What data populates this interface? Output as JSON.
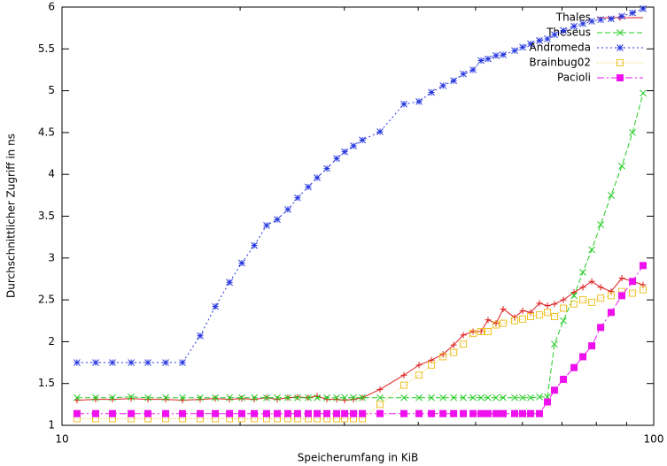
{
  "chart_data": {
    "type": "line",
    "xlabel": "Speicherumfang in KiB",
    "ylabel": "Durchschnittlicher Zugriff in ns",
    "xlog": true,
    "xlim": [
      10,
      100
    ],
    "xticks": [
      10,
      100
    ],
    "xminorticks": [
      20,
      30,
      40,
      50,
      60,
      70,
      80,
      90
    ],
    "ylim": [
      1,
      6
    ],
    "yticks": [
      1,
      1.5,
      2,
      2.5,
      3,
      3.5,
      4,
      4.5,
      5,
      5.5,
      6
    ],
    "legend": "top-right",
    "x": [
      10.6,
      11.4,
      12.17,
      13.09,
      13.97,
      14.97,
      15.98,
      17.12,
      18.16,
      19.19,
      20.13,
      21.13,
      22.17,
      23.11,
      24.08,
      25.01,
      26.07,
      26.99,
      28.03,
      29.12,
      30.04,
      31.09,
      32.18,
      34.47,
      37.83,
      40.12,
      42.11,
      44.05,
      45.91,
      47.67,
      49.51,
      51.07,
      52.48,
      54.14,
      55.66,
      58.21,
      60.04,
      61.94,
      64.11,
      66.13,
      67.97,
      70.37,
      73.34,
      75.91,
      78.59,
      81.35,
      84.74,
      88.34,
      92.08,
      95.95
    ],
    "series": [
      {
        "name": "Thales",
        "color": "#dd1c1c",
        "marker": "plus",
        "values": [
          1.3,
          1.31,
          1.31,
          1.32,
          1.31,
          1.31,
          1.3,
          1.31,
          1.32,
          1.31,
          1.32,
          1.31,
          1.33,
          1.31,
          1.33,
          1.34,
          1.33,
          1.35,
          1.31,
          1.31,
          1.3,
          1.31,
          1.33,
          1.43,
          1.6,
          1.72,
          1.78,
          1.85,
          1.96,
          2.08,
          2.12,
          2.12,
          2.26,
          2.22,
          2.39,
          2.29,
          2.37,
          2.35,
          2.46,
          2.43,
          2.45,
          2.5,
          2.59,
          2.65,
          2.72,
          2.65,
          2.6,
          2.76,
          2.72,
          2.68
        ]
      },
      {
        "name": "Theseus",
        "color": "#22cc22",
        "marker": "cross",
        "values": [
          1.33,
          1.33,
          1.33,
          1.34,
          1.33,
          1.33,
          1.33,
          1.33,
          1.33,
          1.33,
          1.33,
          1.33,
          1.33,
          1.33,
          1.33,
          1.33,
          1.33,
          1.33,
          1.33,
          1.33,
          1.33,
          1.33,
          1.33,
          1.33,
          1.33,
          1.33,
          1.33,
          1.33,
          1.33,
          1.33,
          1.33,
          1.33,
          1.33,
          1.33,
          1.33,
          1.33,
          1.33,
          1.33,
          1.34,
          1.34,
          1.97,
          2.25,
          2.55,
          2.83,
          3.1,
          3.4,
          3.75,
          4.1,
          4.5,
          4.97
        ]
      },
      {
        "name": "Andromeda",
        "color": "#2233dd",
        "marker": "star",
        "values": [
          1.75,
          1.75,
          1.75,
          1.75,
          1.75,
          1.75,
          1.75,
          2.07,
          2.42,
          2.71,
          2.94,
          3.15,
          3.39,
          3.46,
          3.58,
          3.72,
          3.85,
          3.96,
          4.07,
          4.19,
          4.27,
          4.34,
          4.41,
          4.51,
          4.84,
          4.87,
          4.98,
          5.06,
          5.12,
          5.2,
          5.25,
          5.36,
          5.38,
          5.42,
          5.43,
          5.48,
          5.52,
          5.56,
          5.6,
          5.62,
          5.67,
          5.72,
          5.77,
          5.8,
          5.83,
          5.85,
          5.86,
          5.89,
          5.93,
          5.98
        ]
      },
      {
        "name": "Brainbug02",
        "color": "#eec22a",
        "marker": "square",
        "values": [
          1.08,
          1.08,
          1.08,
          1.08,
          1.08,
          1.08,
          1.08,
          1.08,
          1.08,
          1.08,
          1.08,
          1.08,
          1.08,
          1.08,
          1.08,
          1.08,
          1.08,
          1.08,
          1.08,
          1.08,
          1.08,
          1.08,
          1.08,
          1.25,
          1.48,
          1.6,
          1.72,
          1.82,
          1.87,
          1.97,
          2.1,
          2.12,
          2.12,
          2.2,
          2.22,
          2.25,
          2.27,
          2.3,
          2.32,
          2.35,
          2.3,
          2.4,
          2.45,
          2.5,
          2.47,
          2.52,
          2.55,
          2.6,
          2.58,
          2.62
        ]
      },
      {
        "name": "Pacioli",
        "color": "#ee11ee",
        "marker": "filled-square",
        "values": [
          1.14,
          1.14,
          1.14,
          1.14,
          1.14,
          1.14,
          1.14,
          1.14,
          1.14,
          1.14,
          1.14,
          1.14,
          1.14,
          1.14,
          1.14,
          1.14,
          1.14,
          1.14,
          1.14,
          1.14,
          1.14,
          1.14,
          1.14,
          1.14,
          1.14,
          1.14,
          1.14,
          1.14,
          1.14,
          1.14,
          1.14,
          1.14,
          1.14,
          1.14,
          1.14,
          1.14,
          1.14,
          1.14,
          1.14,
          1.28,
          1.42,
          1.55,
          1.69,
          1.82,
          1.95,
          2.17,
          2.35,
          2.55,
          2.72,
          2.91
        ]
      }
    ]
  }
}
